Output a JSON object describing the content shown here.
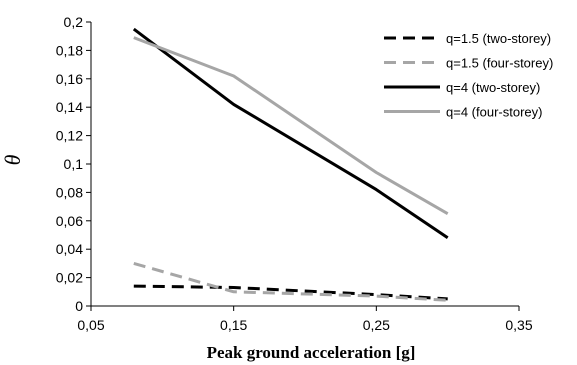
{
  "chart_data": {
    "type": "line",
    "xlabel": "Peak ground acceleration [g]",
    "ylabel": "θ",
    "xlim": [
      0.05,
      0.35
    ],
    "ylim": [
      0,
      0.2
    ],
    "x_ticks": [
      "0,05",
      "0,15",
      "0,25",
      "0,35"
    ],
    "x_tick_values": [
      0.05,
      0.15,
      0.25,
      0.35
    ],
    "y_ticks": [
      "0",
      "0,02",
      "0,04",
      "0,06",
      "0,08",
      "0,1",
      "0,12",
      "0,14",
      "0,16",
      "0,18",
      "0,2"
    ],
    "y_tick_values": [
      0,
      0.02,
      0.04,
      0.06,
      0.08,
      0.1,
      0.12,
      0.14,
      0.16,
      0.18,
      0.2
    ],
    "grid": false,
    "legend_position": "top-right",
    "series": [
      {
        "name": "q=1.5 (two-storey)",
        "color": "#000000",
        "dashed": true,
        "x": [
          0.08,
          0.15,
          0.25,
          0.3
        ],
        "y": [
          0.014,
          0.013,
          0.008,
          0.005
        ]
      },
      {
        "name": "q=1.5 (four-storey)",
        "color": "#a6a6a6",
        "dashed": true,
        "x": [
          0.08,
          0.15,
          0.25,
          0.3
        ],
        "y": [
          0.03,
          0.01,
          0.007,
          0.004
        ]
      },
      {
        "name": "q=4 (two-storey)",
        "color": "#000000",
        "dashed": false,
        "x": [
          0.08,
          0.15,
          0.25,
          0.3
        ],
        "y": [
          0.195,
          0.142,
          0.082,
          0.048
        ]
      },
      {
        "name": "q=4 (four-storey)",
        "color": "#a6a6a6",
        "dashed": false,
        "x": [
          0.08,
          0.15,
          0.25,
          0.3
        ],
        "y": [
          0.189,
          0.162,
          0.094,
          0.065
        ]
      }
    ]
  }
}
